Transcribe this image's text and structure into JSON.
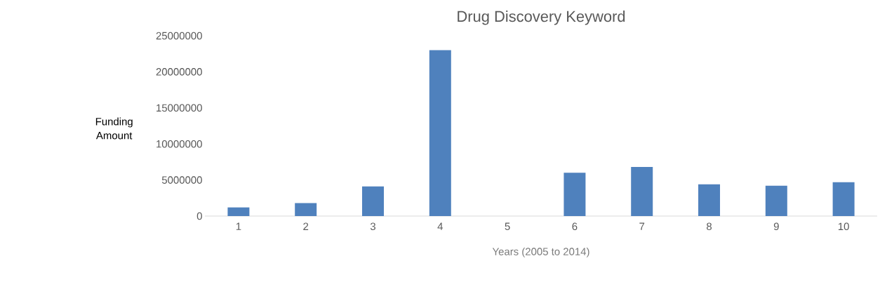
{
  "chart_data": {
    "type": "bar",
    "title": "Drug Discovery Keyword",
    "xlabel": "Years (2005 to 2014)",
    "ylabel": "Funding Amount",
    "categories": [
      "1",
      "2",
      "3",
      "4",
      "5",
      "6",
      "7",
      "8",
      "9",
      "10"
    ],
    "values": [
      1200000,
      1800000,
      4100000,
      23000000,
      0,
      6000000,
      6800000,
      4400000,
      4200000,
      4700000
    ],
    "color": "#4f81bd",
    "ylim": [
      0,
      25000000
    ],
    "yticks": [
      0,
      5000000,
      10000000,
      15000000,
      20000000,
      25000000
    ]
  }
}
